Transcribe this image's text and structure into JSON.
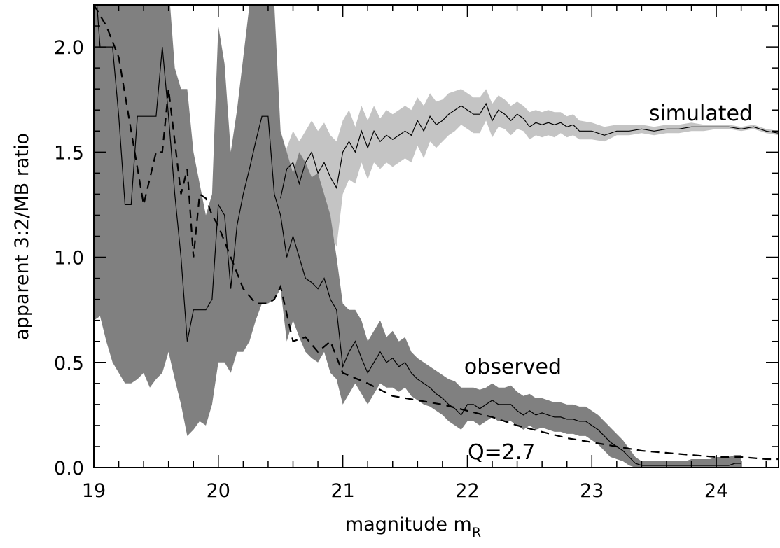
{
  "chart_data": {
    "type": "line",
    "xlabel": "magnitude m",
    "xlabel_sub": "R",
    "ylabel": "apparent 3:2/MB ratio",
    "xlim": [
      19,
      24.5
    ],
    "ylim": [
      0,
      2.2
    ],
    "xticks": [
      "19",
      "20",
      "21",
      "22",
      "23",
      "24"
    ],
    "yticks": [
      "0.0",
      "0.5",
      "1.0",
      "1.5",
      "2.0"
    ],
    "annotations": [
      {
        "text": "simulated",
        "x": 23.3,
        "y": 1.64
      },
      {
        "text": "observed",
        "x": 21.9,
        "y": 0.45
      },
      {
        "text": "Q=2.7",
        "x": 21.95,
        "y": 0.02
      }
    ],
    "colors": {
      "simulated_band": "#c4c4c4",
      "observed_band": "#808080",
      "line": "#000000"
    },
    "series": [
      {
        "key": "simulated",
        "style": "solid-thin",
        "x": [
          20.5,
          20.55,
          20.6,
          20.65,
          20.7,
          20.75,
          20.8,
          20.85,
          20.9,
          20.95,
          21.0,
          21.05,
          21.1,
          21.15,
          21.2,
          21.25,
          21.3,
          21.35,
          21.4,
          21.45,
          21.5,
          21.55,
          21.6,
          21.65,
          21.7,
          21.75,
          21.8,
          21.85,
          21.9,
          21.95,
          22.0,
          22.05,
          22.1,
          22.15,
          22.2,
          22.25,
          22.3,
          22.35,
          22.4,
          22.45,
          22.5,
          22.55,
          22.6,
          22.65,
          22.7,
          22.75,
          22.8,
          22.85,
          22.9,
          23.0,
          23.1,
          23.2,
          23.3,
          23.4,
          23.5,
          23.6,
          23.7,
          23.8,
          23.9,
          24.0,
          24.1,
          24.2,
          24.3,
          24.4,
          24.5
        ],
        "y": [
          1.28,
          1.42,
          1.45,
          1.35,
          1.45,
          1.5,
          1.4,
          1.45,
          1.38,
          1.33,
          1.5,
          1.55,
          1.5,
          1.6,
          1.52,
          1.6,
          1.55,
          1.58,
          1.56,
          1.58,
          1.6,
          1.58,
          1.65,
          1.6,
          1.67,
          1.63,
          1.65,
          1.68,
          1.7,
          1.72,
          1.7,
          1.68,
          1.68,
          1.73,
          1.65,
          1.7,
          1.68,
          1.65,
          1.68,
          1.66,
          1.62,
          1.64,
          1.63,
          1.64,
          1.63,
          1.64,
          1.62,
          1.63,
          1.6,
          1.6,
          1.58,
          1.6,
          1.6,
          1.61,
          1.6,
          1.61,
          1.61,
          1.62,
          1.62,
          1.62,
          1.62,
          1.61,
          1.62,
          1.6,
          1.59
        ],
        "band_upper": [
          1.35,
          1.52,
          1.6,
          1.55,
          1.6,
          1.65,
          1.6,
          1.64,
          1.58,
          1.55,
          1.65,
          1.7,
          1.62,
          1.72,
          1.65,
          1.72,
          1.66,
          1.7,
          1.68,
          1.7,
          1.72,
          1.7,
          1.76,
          1.72,
          1.78,
          1.74,
          1.75,
          1.78,
          1.79,
          1.8,
          1.78,
          1.76,
          1.76,
          1.8,
          1.73,
          1.77,
          1.75,
          1.72,
          1.74,
          1.72,
          1.69,
          1.7,
          1.69,
          1.7,
          1.69,
          1.69,
          1.67,
          1.68,
          1.65,
          1.64,
          1.62,
          1.63,
          1.63,
          1.63,
          1.62,
          1.63,
          1.63,
          1.64,
          1.63,
          1.63,
          1.63,
          1.62,
          1.63,
          1.61,
          1.6
        ],
        "band_lower": [
          1.0,
          1.15,
          1.22,
          1.08,
          1.25,
          1.3,
          1.15,
          1.22,
          1.12,
          1.05,
          1.3,
          1.37,
          1.35,
          1.45,
          1.37,
          1.45,
          1.42,
          1.45,
          1.43,
          1.45,
          1.47,
          1.45,
          1.53,
          1.47,
          1.55,
          1.52,
          1.55,
          1.58,
          1.6,
          1.63,
          1.61,
          1.59,
          1.59,
          1.65,
          1.57,
          1.62,
          1.61,
          1.58,
          1.61,
          1.6,
          1.56,
          1.58,
          1.57,
          1.58,
          1.57,
          1.59,
          1.57,
          1.58,
          1.56,
          1.56,
          1.55,
          1.58,
          1.58,
          1.59,
          1.58,
          1.59,
          1.59,
          1.6,
          1.6,
          1.61,
          1.61,
          1.6,
          1.61,
          1.59,
          1.58
        ]
      },
      {
        "key": "observed",
        "style": "solid-thin",
        "x": [
          19.0,
          19.05,
          19.1,
          19.15,
          19.2,
          19.25,
          19.3,
          19.35,
          19.4,
          19.45,
          19.5,
          19.55,
          19.6,
          19.65,
          19.7,
          19.75,
          19.8,
          19.85,
          19.9,
          19.95,
          20.0,
          20.05,
          20.1,
          20.15,
          20.2,
          20.25,
          20.3,
          20.35,
          20.4,
          20.45,
          20.5,
          20.55,
          20.6,
          20.65,
          20.7,
          20.75,
          20.8,
          20.85,
          20.9,
          20.95,
          21.0,
          21.05,
          21.1,
          21.15,
          21.2,
          21.25,
          21.3,
          21.35,
          21.4,
          21.45,
          21.5,
          21.55,
          21.6,
          21.65,
          21.7,
          21.75,
          21.8,
          21.85,
          21.9,
          21.95,
          22.0,
          22.05,
          22.1,
          22.15,
          22.2,
          22.25,
          22.3,
          22.35,
          22.4,
          22.45,
          22.5,
          22.55,
          22.6,
          22.65,
          22.7,
          22.75,
          22.8,
          22.85,
          22.9,
          22.95,
          23.0,
          23.05,
          23.1,
          23.15,
          23.2,
          23.25,
          23.3,
          23.35,
          23.4,
          23.45,
          23.5,
          23.55,
          23.6,
          23.65,
          23.7,
          23.75,
          23.8,
          23.85,
          23.9,
          23.95,
          24.0,
          24.05,
          24.1,
          24.15,
          24.2
        ],
        "y": [
          2.4,
          2.0,
          2.0,
          2.0,
          1.67,
          1.25,
          1.25,
          1.67,
          1.67,
          1.67,
          1.67,
          2.0,
          1.67,
          1.3,
          1.0,
          0.6,
          0.75,
          0.75,
          0.75,
          0.8,
          1.25,
          1.2,
          0.85,
          1.15,
          1.3,
          1.42,
          1.55,
          1.67,
          1.67,
          1.3,
          1.2,
          1.0,
          1.1,
          1.0,
          0.9,
          0.88,
          0.85,
          0.9,
          0.8,
          0.75,
          0.48,
          0.55,
          0.6,
          0.52,
          0.45,
          0.5,
          0.55,
          0.5,
          0.52,
          0.48,
          0.5,
          0.45,
          0.42,
          0.4,
          0.38,
          0.35,
          0.33,
          0.3,
          0.28,
          0.25,
          0.3,
          0.3,
          0.28,
          0.3,
          0.32,
          0.3,
          0.3,
          0.3,
          0.27,
          0.25,
          0.27,
          0.25,
          0.26,
          0.25,
          0.24,
          0.24,
          0.23,
          0.23,
          0.22,
          0.22,
          0.2,
          0.18,
          0.15,
          0.12,
          0.1,
          0.08,
          0.05,
          0.02,
          0.01,
          0.01,
          0.01,
          0.01,
          0.01,
          0.01,
          0.01,
          0.01,
          0.01,
          0.01,
          0.01,
          0.01,
          0.01,
          0.01,
          0.01,
          0.02,
          0.02
        ],
        "band_upper": [
          2.6,
          2.6,
          2.5,
          2.4,
          2.4,
          2.3,
          2.3,
          2.4,
          2.5,
          2.5,
          2.5,
          2.5,
          2.3,
          1.9,
          1.8,
          1.8,
          1.5,
          1.35,
          1.2,
          1.3,
          2.1,
          1.92,
          1.5,
          1.7,
          1.95,
          2.2,
          2.3,
          2.3,
          2.3,
          2.2,
          1.6,
          1.5,
          1.4,
          1.5,
          1.45,
          1.38,
          1.4,
          1.3,
          1.2,
          1.0,
          0.78,
          0.75,
          0.75,
          0.7,
          0.6,
          0.65,
          0.7,
          0.62,
          0.65,
          0.6,
          0.62,
          0.55,
          0.52,
          0.5,
          0.48,
          0.46,
          0.44,
          0.42,
          0.41,
          0.38,
          0.38,
          0.38,
          0.37,
          0.38,
          0.4,
          0.38,
          0.38,
          0.39,
          0.36,
          0.34,
          0.35,
          0.33,
          0.33,
          0.32,
          0.31,
          0.31,
          0.3,
          0.3,
          0.29,
          0.29,
          0.27,
          0.25,
          0.22,
          0.19,
          0.16,
          0.13,
          0.09,
          0.05,
          0.03,
          0.03,
          0.03,
          0.03,
          0.03,
          0.03,
          0.03,
          0.03,
          0.04,
          0.04,
          0.04,
          0.04,
          0.05,
          0.05,
          0.05,
          0.06,
          0.06
        ],
        "band_lower": [
          0.7,
          0.72,
          0.6,
          0.5,
          0.45,
          0.4,
          0.4,
          0.42,
          0.45,
          0.38,
          0.42,
          0.45,
          0.55,
          0.42,
          0.3,
          0.15,
          0.18,
          0.22,
          0.2,
          0.3,
          0.5,
          0.5,
          0.45,
          0.55,
          0.55,
          0.6,
          0.7,
          0.78,
          0.78,
          0.8,
          0.85,
          0.6,
          0.7,
          0.62,
          0.55,
          0.52,
          0.5,
          0.55,
          0.45,
          0.42,
          0.3,
          0.35,
          0.4,
          0.35,
          0.3,
          0.35,
          0.4,
          0.38,
          0.38,
          0.36,
          0.38,
          0.34,
          0.32,
          0.3,
          0.29,
          0.27,
          0.25,
          0.22,
          0.2,
          0.18,
          0.22,
          0.22,
          0.2,
          0.22,
          0.24,
          0.22,
          0.22,
          0.22,
          0.2,
          0.18,
          0.2,
          0.18,
          0.19,
          0.18,
          0.17,
          0.17,
          0.16,
          0.16,
          0.15,
          0.15,
          0.13,
          0.11,
          0.08,
          0.05,
          0.04,
          0.03,
          0.01,
          0.0,
          0.0,
          0.0,
          0.0,
          0.0,
          0.0,
          0.0,
          0.0,
          0.0,
          0.0,
          0.0,
          0.0,
          0.0,
          0.0,
          0.0,
          0.0,
          0.0,
          0.0
        ]
      },
      {
        "key": "model",
        "style": "dashed",
        "x": [
          19.0,
          19.1,
          19.2,
          19.3,
          19.4,
          19.5,
          19.55,
          19.6,
          19.7,
          19.75,
          19.8,
          19.85,
          19.9,
          19.95,
          20.0,
          20.1,
          20.2,
          20.3,
          20.4,
          20.45,
          20.5,
          20.6,
          20.7,
          20.8,
          20.9,
          21.0,
          21.2,
          21.4,
          21.6,
          21.8,
          22.0,
          22.2,
          22.4,
          22.6,
          22.8,
          23.0,
          23.2,
          23.4,
          23.6,
          23.8,
          24.0,
          24.2,
          24.4,
          24.5
        ],
        "y": [
          2.2,
          2.1,
          1.95,
          1.6,
          1.25,
          1.5,
          1.5,
          1.8,
          1.3,
          1.42,
          1.0,
          1.3,
          1.28,
          1.2,
          1.15,
          1.0,
          0.85,
          0.78,
          0.78,
          0.8,
          0.86,
          0.6,
          0.62,
          0.55,
          0.6,
          0.45,
          0.4,
          0.34,
          0.32,
          0.3,
          0.27,
          0.24,
          0.2,
          0.17,
          0.14,
          0.12,
          0.1,
          0.08,
          0.07,
          0.06,
          0.05,
          0.05,
          0.04,
          0.04
        ]
      }
    ]
  }
}
